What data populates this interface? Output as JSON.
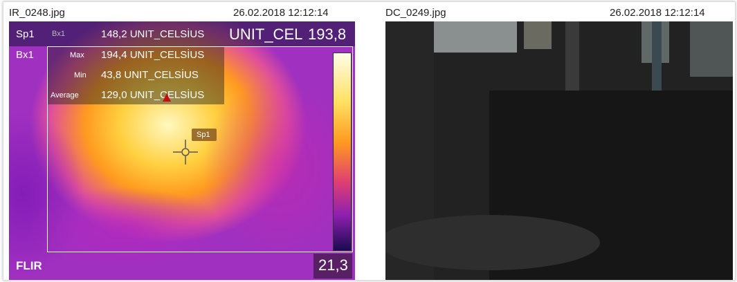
{
  "left": {
    "file": "IR_0248.jpg",
    "timestamp": "26.02.2018 12:12:14",
    "overlay": {
      "spot": "Sp1",
      "spot_box": "Bx1",
      "spot_value": "148,2 UNIT_CELSİUS",
      "scale_unit": "UNIT_CEL",
      "scale_max": "193,8",
      "box": "Bx1",
      "max_label": "Max",
      "max_value": "194,4 UNIT_CELSİUS",
      "min_label": "Min",
      "min_value": "43,8 UNIT_CELSİUS",
      "avg_label": "Average",
      "avg_value": "129,0 UNIT_CELSİUS",
      "spot_marker": "Sp1",
      "brand": "FLIR",
      "scale_min": "21,3"
    }
  },
  "right": {
    "file": "DC_0249.jpg",
    "timestamp": "26.02.2018 12:12:14"
  }
}
